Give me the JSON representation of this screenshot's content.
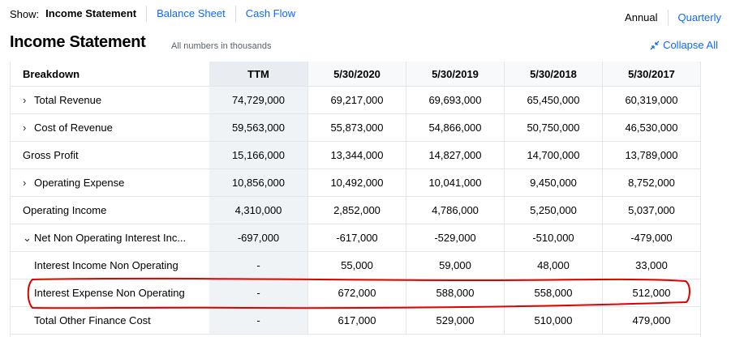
{
  "topbar": {
    "show_label": "Show:",
    "tabs": [
      {
        "label": "Income Statement"
      },
      {
        "label": "Balance Sheet"
      },
      {
        "label": "Cash Flow"
      }
    ]
  },
  "period": {
    "annual": "Annual",
    "quarterly": "Quarterly"
  },
  "title": "Income Statement",
  "subtitle": "All numbers in thousands",
  "collapse_label": "Collapse All",
  "accent_color": "#0f69ff",
  "highlight_color": "#e00000",
  "table": {
    "columns": [
      "Breakdown",
      "TTM",
      "5/30/2020",
      "5/30/2019",
      "5/30/2018",
      "5/30/2017"
    ],
    "rows": [
      {
        "label": "Total Revenue",
        "expand": "›",
        "values": [
          "74,729,000",
          "69,217,000",
          "69,693,000",
          "65,450,000",
          "60,319,000"
        ]
      },
      {
        "label": "Cost of Revenue",
        "expand": "›",
        "values": [
          "59,563,000",
          "55,873,000",
          "54,866,000",
          "50,750,000",
          "46,530,000"
        ]
      },
      {
        "label": "Gross Profit",
        "expand": "",
        "values": [
          "15,166,000",
          "13,344,000",
          "14,827,000",
          "14,700,000",
          "13,789,000"
        ]
      },
      {
        "label": "Operating Expense",
        "expand": "›",
        "values": [
          "10,856,000",
          "10,492,000",
          "10,041,000",
          "9,450,000",
          "8,752,000"
        ]
      },
      {
        "label": "Operating Income",
        "expand": "",
        "values": [
          "4,310,000",
          "2,852,000",
          "4,786,000",
          "5,250,000",
          "5,037,000"
        ]
      },
      {
        "label": "Net Non Operating Interest Inc...",
        "expand": "⌄",
        "values": [
          "-697,000",
          "-617,000",
          "-529,000",
          "-510,000",
          "-479,000"
        ]
      },
      {
        "label": "Interest Income Non Operating",
        "expand": "",
        "sub": true,
        "values": [
          "-",
          "55,000",
          "59,000",
          "48,000",
          "33,000"
        ]
      },
      {
        "label": "Interest Expense Non Operating",
        "expand": "",
        "sub": true,
        "values": [
          "-",
          "672,000",
          "588,000",
          "558,000",
          "512,000"
        ]
      },
      {
        "label": "Total Other Finance Cost",
        "expand": "",
        "sub": true,
        "values": [
          "-",
          "617,000",
          "529,000",
          "510,000",
          "479,000"
        ]
      }
    ]
  }
}
